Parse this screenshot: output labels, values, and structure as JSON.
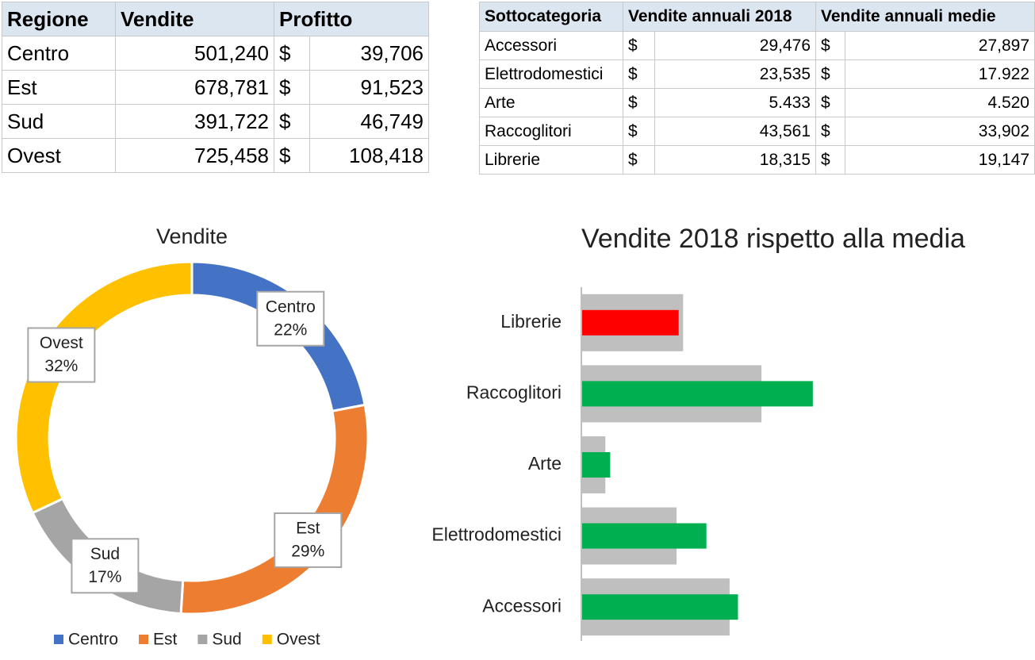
{
  "tables": [
    {
      "header": [
        "Regione",
        "Vendite",
        "Profitto"
      ],
      "rows": [
        [
          "Centro",
          "501,240",
          "$",
          "39,706"
        ],
        [
          "Est",
          "678,781",
          "$",
          "91,523"
        ],
        [
          "Sud",
          "391,722",
          "$",
          "46,749"
        ],
        [
          "Ovest",
          "725,458",
          "$",
          "108,418"
        ]
      ]
    },
    {
      "header": [
        "Sottocategoria",
        "Vendite annuali 2018",
        "Vendite annuali medie"
      ],
      "rows": [
        [
          "Accessori",
          "$",
          "29,476",
          "$",
          "27,897"
        ],
        [
          "Elettrodomestici",
          "$",
          "23,535",
          "$",
          "17.922"
        ],
        [
          "Arte",
          "$",
          "5.433",
          "$",
          "4.520"
        ],
        [
          "Raccoglitori",
          "$",
          "43,561",
          "$",
          "33,902"
        ],
        [
          "Librerie",
          "$",
          "18,315",
          "$",
          "19,147"
        ]
      ]
    }
  ],
  "chart_data": [
    {
      "type": "donut",
      "title": "Vendite",
      "categories": [
        "Centro",
        "Est",
        "Sud",
        "Ovest"
      ],
      "values": [
        22,
        29,
        17,
        32
      ],
      "value_labels": [
        "22%",
        "29%",
        "17%",
        "32%"
      ],
      "colors": [
        "#4472c4",
        "#ed7d31",
        "#a5a5a5",
        "#ffc000"
      ],
      "legend": "bottom"
    },
    {
      "type": "bar",
      "orientation": "horizontal",
      "title": "Vendite 2018 rispetto alla media",
      "categories": [
        "Accessori",
        "Elettrodomestici",
        "Arte",
        "Raccoglitori",
        "Librerie"
      ],
      "series": [
        {
          "color": "#bfbfbf",
          "values": [
            27897,
            17922,
            4520,
            33902,
            19147
          ]
        },
        {
          "colors": [
            "#00b050",
            "#00b050",
            "#00b050",
            "#00b050",
            "#ff0000"
          ],
          "values": [
            29476,
            23535,
            5433,
            43561,
            18315
          ]
        }
      ],
      "xlim": [
        0,
        50000
      ],
      "grid": false
    }
  ]
}
